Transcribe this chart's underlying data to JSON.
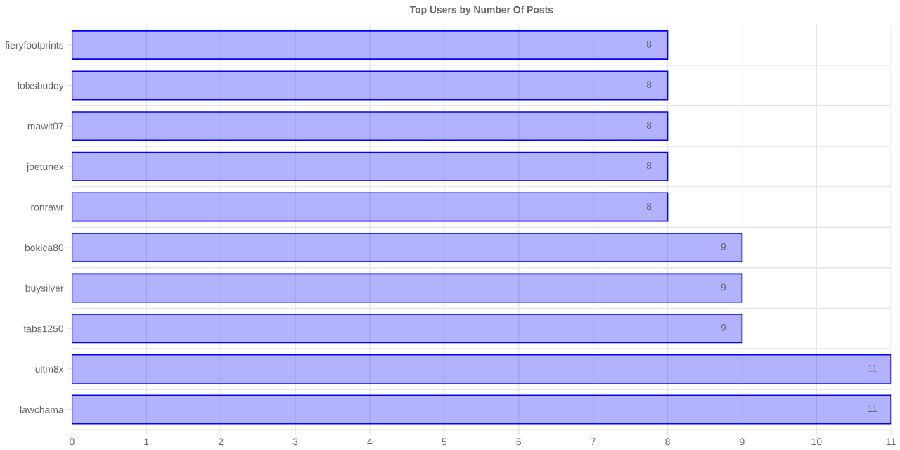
{
  "chart_data": {
    "type": "bar",
    "orientation": "horizontal",
    "title": "Top Users by Number Of Posts",
    "categories": [
      "fieryfootprints",
      "lolxsbudoy",
      "mawit07",
      "joetunex",
      "ronrawr",
      "bokica80",
      "buysilver",
      "tabs1250",
      "ultm8x",
      "lawchama"
    ],
    "values": [
      8,
      8,
      8,
      8,
      8,
      9,
      9,
      9,
      11,
      11
    ],
    "color": "#0000ff",
    "xlim": [
      0,
      11
    ],
    "xticks": [
      0,
      1,
      2,
      3,
      4,
      5,
      6,
      7,
      8,
      9,
      10,
      11
    ],
    "grid": true,
    "data_labels": true
  }
}
